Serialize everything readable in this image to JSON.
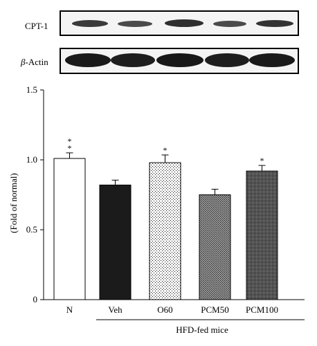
{
  "blots": [
    {
      "label": "CPT-1"
    },
    {
      "label_symbol": "β",
      "label_rest": "-Actin"
    }
  ],
  "chart_data": {
    "type": "bar",
    "categories": [
      "N",
      "Veh",
      "O60",
      "PCM50",
      "PCM100"
    ],
    "values": [
      1.01,
      0.82,
      0.98,
      0.75,
      0.92
    ],
    "errors": [
      0.04,
      0.035,
      0.055,
      0.04,
      0.04
    ],
    "significance": [
      "**",
      "",
      "*",
      "",
      "*"
    ],
    "fills": [
      "white",
      "black",
      "light-dots",
      "dense-gray",
      "dark-checker"
    ],
    "ylabel": "(Fold of normal)",
    "yticks": [
      "0",
      "0.5",
      "1.0",
      "1.5"
    ],
    "ylim": [
      0,
      1.5
    ],
    "group_label": "HFD-fed mice"
  }
}
